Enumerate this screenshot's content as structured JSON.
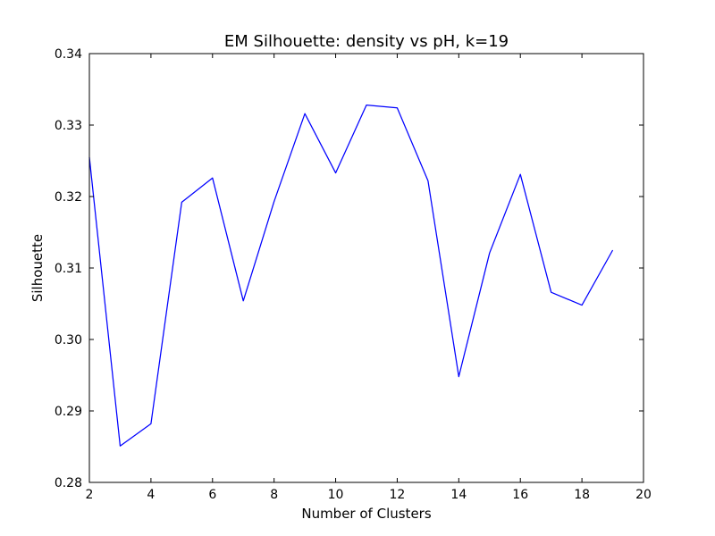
{
  "chart_data": {
    "type": "line",
    "title": "EM Silhouette: density vs pH, k=19",
    "xlabel": "Number of Clusters",
    "ylabel": "Silhouette",
    "xlim": [
      2,
      20
    ],
    "ylim": [
      0.28,
      0.34
    ],
    "xticks": [
      2,
      4,
      6,
      8,
      10,
      12,
      14,
      16,
      18,
      20
    ],
    "xtick_labels": [
      "2",
      "4",
      "6",
      "8",
      "10",
      "12",
      "14",
      "16",
      "18",
      "20"
    ],
    "yticks": [
      0.28,
      0.29,
      0.3,
      0.31,
      0.32,
      0.33,
      0.34
    ],
    "ytick_labels": [
      "0.28",
      "0.29",
      "0.30",
      "0.31",
      "0.32",
      "0.33",
      "0.34"
    ],
    "grid": false,
    "series": [
      {
        "color": "#0000ff",
        "x": [
          2,
          3,
          4,
          5,
          6,
          7,
          8,
          9,
          10,
          11,
          12,
          13,
          14,
          15,
          16,
          17,
          18,
          19
        ],
        "y": [
          0.3255,
          0.2851,
          0.2882,
          0.3192,
          0.3226,
          0.3054,
          0.3193,
          0.3316,
          0.3233,
          0.3328,
          0.3324,
          0.3222,
          0.2948,
          0.3121,
          0.3231,
          0.3066,
          0.3048,
          0.3125
        ]
      }
    ]
  }
}
